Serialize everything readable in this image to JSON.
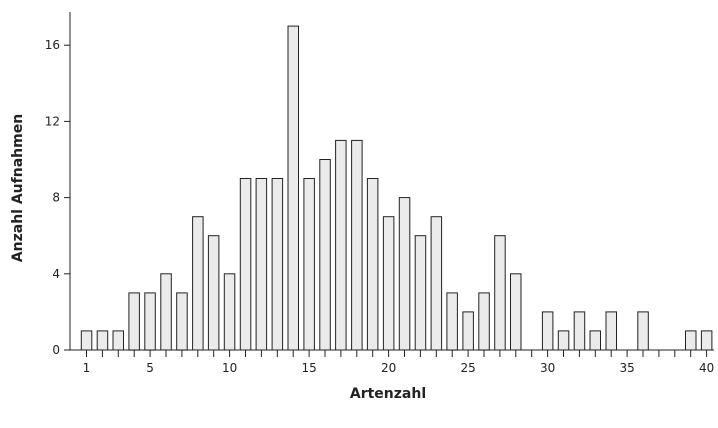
{
  "chart_data": {
    "type": "bar",
    "title": "",
    "xlabel": "Artenzahl",
    "ylabel": "Anzahl Aufnahmen",
    "categories": [
      1,
      2,
      3,
      4,
      5,
      6,
      7,
      8,
      9,
      10,
      11,
      12,
      13,
      14,
      15,
      16,
      17,
      18,
      19,
      20,
      21,
      22,
      23,
      24,
      25,
      26,
      27,
      28,
      29,
      30,
      31,
      32,
      33,
      34,
      35,
      36,
      37,
      38,
      39,
      40
    ],
    "values": [
      1,
      1,
      1,
      3,
      3,
      4,
      3,
      7,
      6,
      4,
      9,
      9,
      9,
      17,
      9,
      10,
      11,
      11,
      9,
      7,
      8,
      6,
      7,
      3,
      2,
      3,
      6,
      4,
      0,
      2,
      1,
      2,
      1,
      2,
      0,
      2,
      0,
      0,
      1,
      1
    ],
    "x_tick_labels": [
      "1",
      "5",
      "10",
      "15",
      "20",
      "25",
      "30",
      "35",
      "40"
    ],
    "x_tick_values": [
      1,
      5,
      10,
      15,
      20,
      25,
      30,
      35,
      40
    ],
    "y_ticks": [
      0,
      4,
      8,
      12,
      16
    ],
    "ylim": [
      0,
      18
    ],
    "grid": false,
    "colors": {
      "bar_fill": "#ebebeb",
      "bar_stroke": "#222222"
    }
  }
}
